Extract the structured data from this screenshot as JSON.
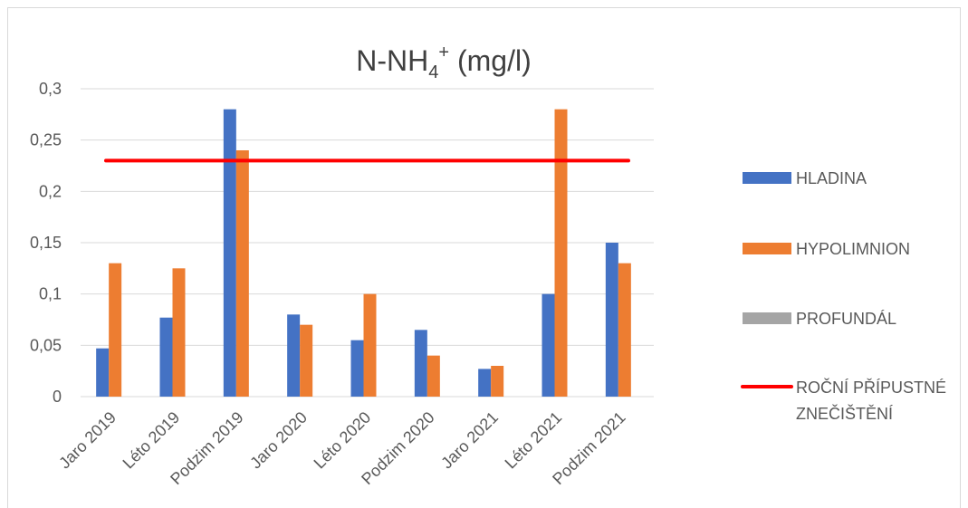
{
  "chart_data": {
    "type": "bar",
    "title": {
      "main": "N-NH",
      "subscript": "4",
      "superscript": "+",
      "unit": " (mg/l)"
    },
    "categories": [
      "Jaro 2019",
      "Léto 2019",
      "Podzim 2019",
      "Jaro 2020",
      "Léto 2020",
      "Podzim 2020",
      "Jaro 2021",
      "Léto 2021",
      "Podzim 2021"
    ],
    "series": [
      {
        "name": "HLADINA",
        "color": "#4472c4",
        "values": [
          0.047,
          0.077,
          0.28,
          0.08,
          0.055,
          0.065,
          0.027,
          0.1,
          0.15
        ]
      },
      {
        "name": "HYPOLIMNION",
        "color": "#ed7d31",
        "values": [
          0.13,
          0.125,
          0.24,
          0.07,
          0.1,
          0.04,
          0.03,
          0.28,
          0.13
        ]
      },
      {
        "name": "PROFUNDÁL",
        "color": "#a5a5a5",
        "values": [
          null,
          null,
          null,
          null,
          null,
          null,
          null,
          null,
          null
        ]
      }
    ],
    "reference_line": {
      "name_lines": [
        "ROČNÍ PŘÍPUSTNÉ",
        "ZNEČIŠTĚNÍ"
      ],
      "value": 0.23,
      "color": "#ff0000"
    },
    "yticks": [
      "0",
      "0,05",
      "0,1",
      "0,15",
      "0,2",
      "0,25",
      "0,3"
    ],
    "ylim": [
      0,
      0.3
    ],
    "grid": true,
    "legend_position": "right"
  }
}
